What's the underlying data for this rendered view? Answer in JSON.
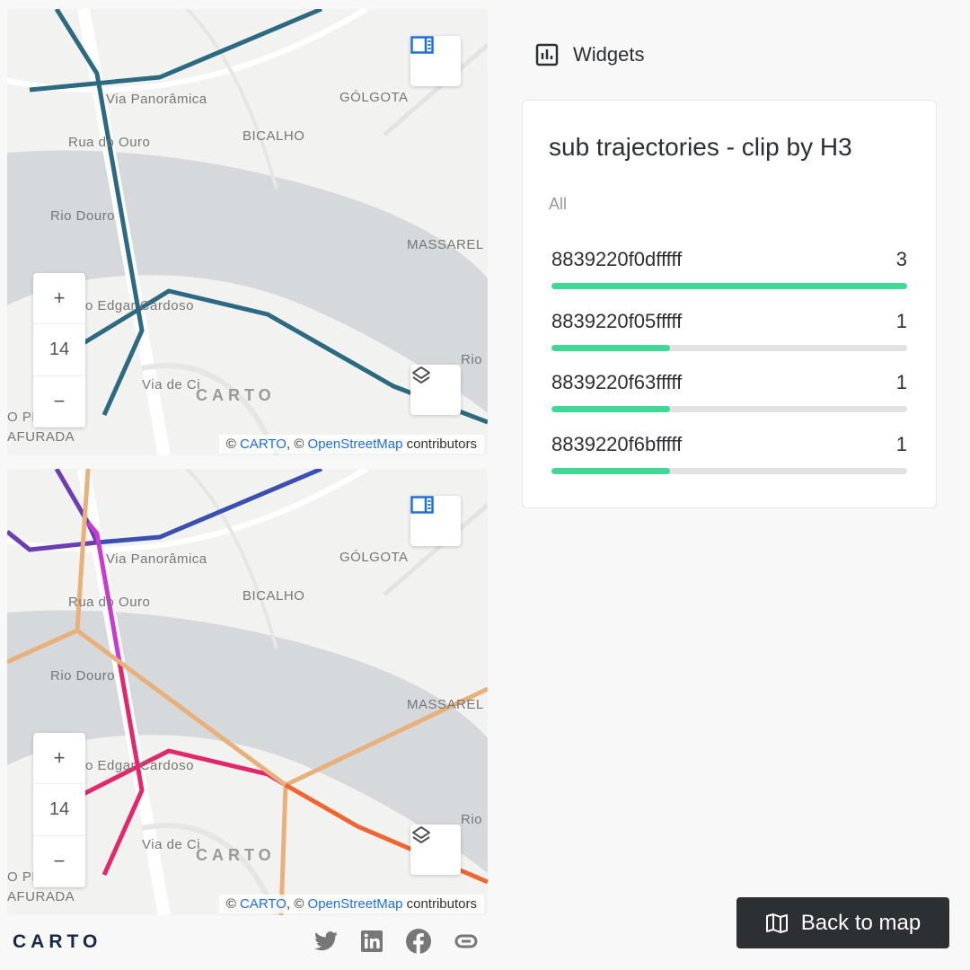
{
  "maps": [
    {
      "zoom_level": "14",
      "zoom_in": "+",
      "zoom_out": "−",
      "watermark": "CARTO",
      "attribution": {
        "prefix": "© ",
        "carto": "CARTO",
        "mid": ", © ",
        "osm": "OpenStreetMap",
        "suffix": " contributors"
      },
      "labels": [
        "GÓLGOTA",
        "BICALHO",
        "Rua do Ouro",
        "Rio Douro",
        "MASSAREL",
        "Via Panorâmica",
        "heiro Edgar Cardoso",
        "Via de Ci",
        "O PE",
        "AFURADA",
        "Rio"
      ]
    },
    {
      "zoom_level": "14",
      "zoom_in": "+",
      "zoom_out": "−",
      "watermark": "CARTO",
      "attribution": {
        "prefix": "© ",
        "carto": "CARTO",
        "mid": ", © ",
        "osm": "OpenStreetMap",
        "suffix": " contributors"
      },
      "labels": [
        "GÓLGOTA",
        "BICALHO",
        "Rua do Ouro",
        "Rio Douro",
        "MASSAREL",
        "Via Panorâmica",
        "heiro Edgar Cardoso",
        "Via de Ci",
        "O PE",
        "AFURADA",
        "Rio"
      ]
    }
  ],
  "colors": {
    "trajectory": "#2b6a80",
    "bar_fill": "#3fd895",
    "link": "#1e6fd9",
    "palette": [
      "#6a3db5",
      "#3a4fb0",
      "#c83ad0",
      "#e0286a",
      "#e8b07a",
      "#f06530"
    ]
  },
  "widgets": {
    "title": "Widgets",
    "icon": "bar-chart-icon",
    "card": {
      "title": "sub trajectories - clip by H3",
      "filter": "All",
      "items": [
        {
          "label": "8839220f0dfffff",
          "value": 3
        },
        {
          "label": "8839220f05fffff",
          "value": 1
        },
        {
          "label": "8839220f63fffff",
          "value": 1
        },
        {
          "label": "8839220f6bfffff",
          "value": 1
        }
      ],
      "max": 3
    }
  },
  "footer": {
    "logo": "CARTO",
    "social": [
      "twitter-icon",
      "linkedin-icon",
      "facebook-icon",
      "link-icon"
    ],
    "back_button": "Back to map"
  }
}
